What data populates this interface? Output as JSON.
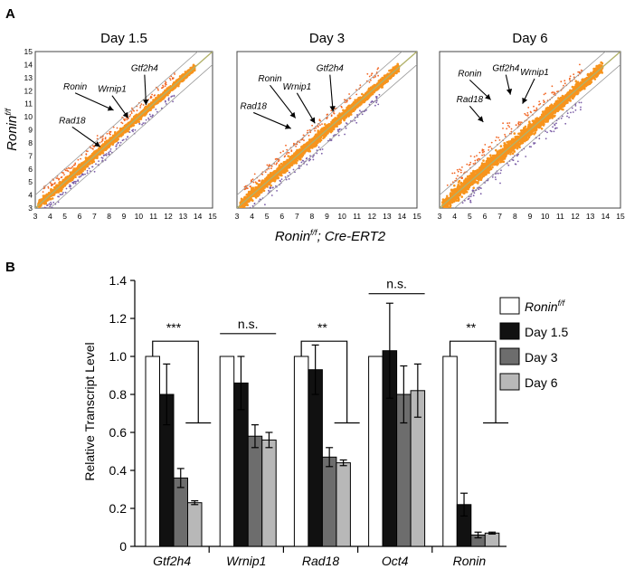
{
  "panel_a": {
    "label": "A",
    "y_axis_label": "Ronin",
    "y_axis_sup": "f/f",
    "x_axis_label_main": "Ronin",
    "x_axis_label_sup": "f/f",
    "x_axis_label_rest": "; Cre-ERT2",
    "axis_min": 3,
    "axis_max": 15,
    "colors": {
      "dense": "#f7941d",
      "high": "#f26522",
      "low": "#7b5ea7",
      "diag": "#b2b26a",
      "bound": "#999999"
    },
    "panels": [
      {
        "title": "Day 1.5",
        "spread": 0.35,
        "annotations": [
          {
            "gene": "Gtf2h4",
            "text": [
              10.4,
              13.5
            ],
            "tip": [
              10.5,
              10.9
            ]
          },
          {
            "gene": "Ronin",
            "text": [
              5.7,
              12.1
            ],
            "tip": [
              8.3,
              10.5
            ]
          },
          {
            "gene": "Wrnip1",
            "text": [
              8.2,
              11.9
            ],
            "tip": [
              9.3,
              9.9
            ]
          },
          {
            "gene": "Rad18",
            "text": [
              5.5,
              9.5
            ],
            "tip": [
              7.4,
              7.7
            ]
          }
        ]
      },
      {
        "title": "Day 3",
        "spread": 0.45,
        "annotations": [
          {
            "gene": "Gtf2h4",
            "text": [
              9.2,
              13.5
            ],
            "tip": [
              9.4,
              10.4
            ]
          },
          {
            "gene": "Ronin",
            "text": [
              5.2,
              12.7
            ],
            "tip": [
              6.9,
              9.9
            ]
          },
          {
            "gene": "Wrnip1",
            "text": [
              7.0,
              12.1
            ],
            "tip": [
              8.2,
              9.5
            ]
          },
          {
            "gene": "Rad18",
            "text": [
              4.1,
              10.6
            ],
            "tip": [
              6.6,
              9.1
            ]
          }
        ]
      },
      {
        "title": "Day 6",
        "spread": 0.6,
        "annotations": [
          {
            "gene": "Gtf2h4",
            "text": [
              7.4,
              13.5
            ],
            "tip": [
              7.7,
              11.7
            ]
          },
          {
            "gene": "Wrnip1",
            "text": [
              9.3,
              13.2
            ],
            "tip": [
              8.5,
              11.0
            ]
          },
          {
            "gene": "Ronin",
            "text": [
              5.0,
              13.1
            ],
            "tip": [
              6.4,
              11.3
            ]
          },
          {
            "gene": "Rad18",
            "text": [
              5.0,
              11.1
            ],
            "tip": [
              5.9,
              9.6
            ]
          }
        ]
      }
    ]
  },
  "chart_data": {
    "type": "bar",
    "label": "B",
    "ylabel": "Relative Transcript Level",
    "ylim": [
      0,
      1.4
    ],
    "yticks": [
      "0",
      "0.2",
      "0.4",
      "0.6",
      "0.8",
      "1.0",
      "1.2",
      "1.4"
    ],
    "categories": [
      "Gtf2h4",
      "Wrnip1",
      "Rad18",
      "Oct4",
      "Ronin"
    ],
    "series": [
      {
        "name": "Ronin",
        "name_sup": "f/f",
        "color": "#ffffff",
        "values": [
          1.0,
          1.0,
          1.0,
          1.0,
          1.0
        ],
        "errors": [
          0,
          0,
          0,
          0,
          0
        ]
      },
      {
        "name": "Day 1.5",
        "color": "#111111",
        "values": [
          0.8,
          0.86,
          0.93,
          1.03,
          0.22
        ],
        "errors": [
          0.16,
          0.14,
          0.13,
          0.25,
          0.06
        ]
      },
      {
        "name": "Day 3",
        "color": "#6d6d6d",
        "values": [
          0.36,
          0.58,
          0.47,
          0.8,
          0.06
        ],
        "errors": [
          0.05,
          0.06,
          0.05,
          0.15,
          0.015
        ]
      },
      {
        "name": "Day 6",
        "color": "#b8b8b8",
        "values": [
          0.23,
          0.56,
          0.44,
          0.82,
          0.07
        ],
        "errors": [
          0.01,
          0.04,
          0.015,
          0.14,
          0.005
        ]
      }
    ],
    "significance": [
      {
        "category": "Gtf2h4",
        "text": "***",
        "type": "bracket"
      },
      {
        "category": "Wrnip1",
        "text": "n.s.",
        "type": "line"
      },
      {
        "category": "Rad18",
        "text": "**",
        "type": "bracket"
      },
      {
        "category": "Oct4",
        "text": "n.s.",
        "type": "line"
      },
      {
        "category": "Ronin",
        "text": "**",
        "type": "bracket"
      }
    ]
  }
}
